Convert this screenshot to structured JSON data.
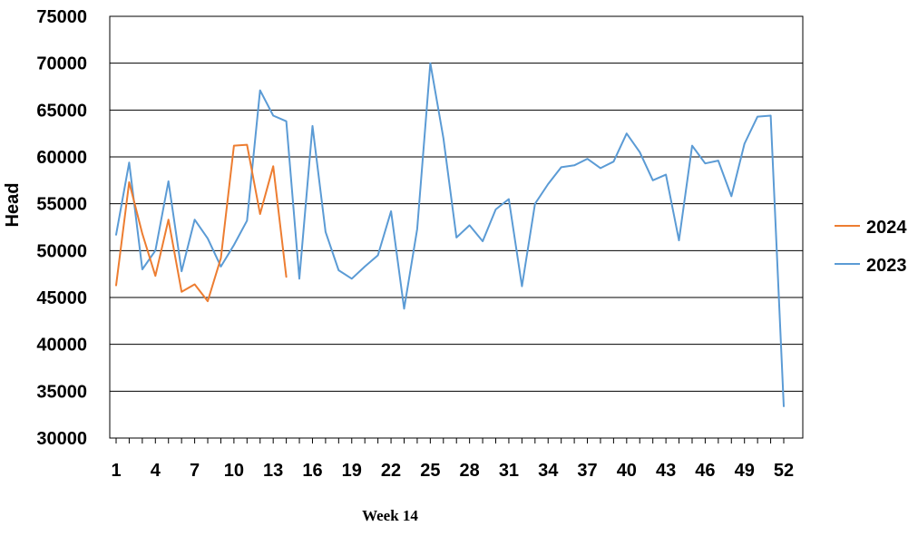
{
  "chart_data": {
    "type": "line",
    "title": "",
    "xlabel": "Week 14",
    "ylabel": "Head",
    "ylim": [
      30000,
      75000
    ],
    "y_ticks": [
      30000,
      35000,
      40000,
      45000,
      50000,
      55000,
      60000,
      65000,
      70000,
      75000
    ],
    "y_tick_labels": [
      "30000",
      "35000",
      "40000",
      "45000",
      "50000",
      "55000",
      "60000",
      "65000",
      "70000",
      "75000"
    ],
    "x_range": [
      1,
      52
    ],
    "x_tick_labels": [
      "1",
      "4",
      "7",
      "10",
      "13",
      "16",
      "19",
      "22",
      "25",
      "28",
      "31",
      "34",
      "37",
      "40",
      "43",
      "46",
      "49",
      "52"
    ],
    "legend_position": "right",
    "grid": true,
    "series": [
      {
        "name": "2024",
        "color": "#ED7D31",
        "x": [
          1,
          2,
          3,
          4,
          5,
          6,
          7,
          8,
          9,
          10,
          11,
          12,
          13,
          14
        ],
        "values": [
          46300,
          57300,
          51800,
          47300,
          53300,
          45600,
          46400,
          44600,
          49200,
          61200,
          61300,
          53900,
          59000,
          47200
        ]
      },
      {
        "name": "2023",
        "color": "#5B9BD5",
        "x": [
          1,
          2,
          3,
          4,
          5,
          6,
          7,
          8,
          9,
          10,
          11,
          12,
          13,
          14,
          15,
          16,
          17,
          18,
          19,
          20,
          21,
          22,
          23,
          24,
          25,
          26,
          27,
          28,
          29,
          30,
          31,
          32,
          33,
          34,
          35,
          36,
          37,
          38,
          39,
          40,
          41,
          42,
          43,
          44,
          45,
          46,
          47,
          48,
          49,
          50,
          51,
          52
        ],
        "values": [
          51700,
          59400,
          48000,
          50000,
          57400,
          47800,
          53300,
          51300,
          48300,
          50600,
          53200,
          67100,
          64400,
          63800,
          47000,
          63300,
          52000,
          47900,
          47000,
          48300,
          49500,
          54200,
          43800,
          52300,
          70000,
          62000,
          51400,
          52700,
          51000,
          54400,
          55500,
          46200,
          55000,
          57100,
          58900,
          59100,
          59800,
          58800,
          59500,
          62500,
          60500,
          57500,
          58100,
          51100,
          61200,
          59300,
          59600,
          55800,
          61400,
          64300,
          64400,
          33400
        ]
      }
    ]
  }
}
